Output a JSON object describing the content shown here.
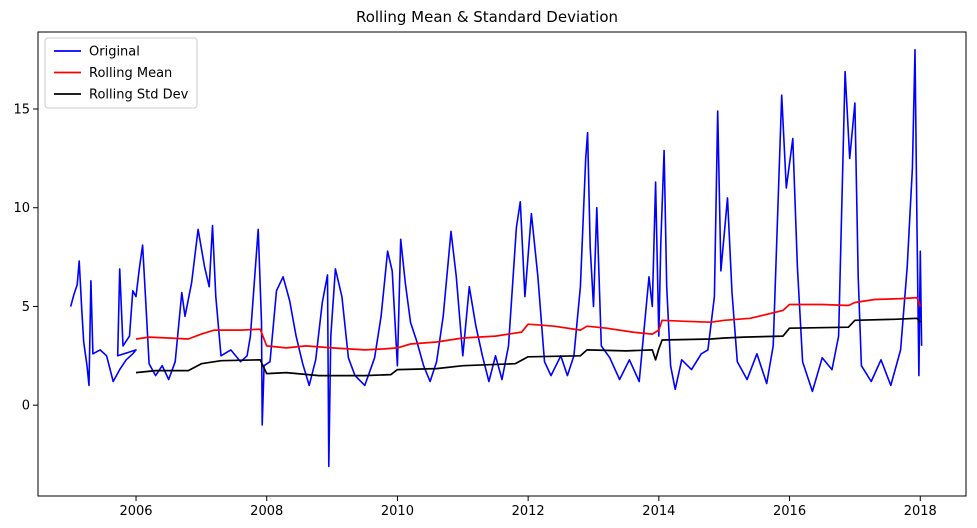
{
  "chart_data": {
    "type": "line",
    "title": "Rolling Mean & Standard Deviation",
    "xlabel": "",
    "ylabel": "",
    "xlim": [
      2004.5,
      2018.7
    ],
    "ylim": [
      -4.6,
      18.9
    ],
    "x_ticks": [
      2006,
      2008,
      2010,
      2012,
      2014,
      2016,
      2018
    ],
    "y_ticks": [
      0,
      5,
      10,
      15
    ],
    "grid": false,
    "legend_position": "top-left",
    "series": [
      {
        "name": "Original",
        "color": "#0000ff",
        "points": [
          [
            2005.0,
            5.0
          ],
          [
            2005.05,
            5.6
          ],
          [
            2005.1,
            6.1
          ],
          [
            2005.13,
            7.3
          ],
          [
            2005.17,
            4.8
          ],
          [
            2005.2,
            3.2
          ],
          [
            2005.25,
            2.0
          ],
          [
            2005.28,
            1.0
          ],
          [
            2005.31,
            6.3
          ],
          [
            2005.34,
            2.6
          ],
          [
            2005.45,
            2.8
          ],
          [
            2005.55,
            2.5
          ],
          [
            2005.65,
            1.2
          ],
          [
            2005.75,
            1.8
          ],
          [
            2005.85,
            2.3
          ],
          [
            2005.95,
            2.6
          ],
          [
            2006.0,
            2.8
          ],
          [
            2005.72,
            2.5
          ],
          [
            2005.75,
            6.9
          ],
          [
            2005.8,
            3.0
          ],
          [
            2005.9,
            3.5
          ],
          [
            2005.95,
            5.8
          ],
          [
            2006.0,
            5.5
          ],
          [
            2006.05,
            6.9
          ],
          [
            2006.1,
            8.1
          ],
          [
            2006.15,
            5.2
          ],
          [
            2006.2,
            2.1
          ],
          [
            2006.3,
            1.5
          ],
          [
            2006.4,
            2.0
          ],
          [
            2006.5,
            1.3
          ],
          [
            2006.6,
            2.2
          ],
          [
            2006.7,
            5.7
          ],
          [
            2006.75,
            4.5
          ],
          [
            2006.85,
            6.2
          ],
          [
            2006.95,
            8.9
          ],
          [
            2007.05,
            7.0
          ],
          [
            2007.12,
            6.0
          ],
          [
            2007.17,
            9.1
          ],
          [
            2007.22,
            5.5
          ],
          [
            2007.3,
            2.5
          ],
          [
            2007.45,
            2.8
          ],
          [
            2007.6,
            2.2
          ],
          [
            2007.7,
            2.5
          ],
          [
            2007.75,
            3.5
          ],
          [
            2007.8,
            5.8
          ],
          [
            2007.87,
            8.9
          ],
          [
            2007.92,
            4.2
          ],
          [
            2007.93,
            -1.0
          ],
          [
            2007.96,
            2.0
          ],
          [
            2008.05,
            2.2
          ],
          [
            2008.15,
            5.8
          ],
          [
            2008.25,
            6.5
          ],
          [
            2008.35,
            5.3
          ],
          [
            2008.45,
            3.5
          ],
          [
            2008.55,
            2.1
          ],
          [
            2008.65,
            1.0
          ],
          [
            2008.75,
            2.3
          ],
          [
            2008.85,
            5.2
          ],
          [
            2008.93,
            6.6
          ],
          [
            2008.95,
            -3.1
          ],
          [
            2008.98,
            3.5
          ],
          [
            2009.05,
            6.9
          ],
          [
            2009.15,
            5.5
          ],
          [
            2009.25,
            2.4
          ],
          [
            2009.35,
            1.5
          ],
          [
            2009.5,
            1.0
          ],
          [
            2009.65,
            2.4
          ],
          [
            2009.75,
            4.5
          ],
          [
            2009.85,
            7.8
          ],
          [
            2009.92,
            6.8
          ],
          [
            2010.0,
            2.0
          ],
          [
            2010.05,
            8.4
          ],
          [
            2010.12,
            6.2
          ],
          [
            2010.2,
            4.2
          ],
          [
            2010.3,
            3.2
          ],
          [
            2010.4,
            2.0
          ],
          [
            2010.5,
            1.2
          ],
          [
            2010.6,
            2.2
          ],
          [
            2010.7,
            4.5
          ],
          [
            2010.82,
            8.8
          ],
          [
            2010.9,
            6.5
          ],
          [
            2011.0,
            2.5
          ],
          [
            2011.1,
            6.0
          ],
          [
            2011.2,
            4.0
          ],
          [
            2011.3,
            2.5
          ],
          [
            2011.4,
            1.2
          ],
          [
            2011.5,
            2.5
          ],
          [
            2011.6,
            1.3
          ],
          [
            2011.7,
            3.0
          ],
          [
            2011.82,
            9.0
          ],
          [
            2011.88,
            10.3
          ],
          [
            2011.95,
            5.5
          ],
          [
            2012.05,
            9.7
          ],
          [
            2012.15,
            6.5
          ],
          [
            2012.25,
            2.2
          ],
          [
            2012.35,
            1.5
          ],
          [
            2012.5,
            2.5
          ],
          [
            2012.6,
            1.5
          ],
          [
            2012.7,
            2.5
          ],
          [
            2012.8,
            6.0
          ],
          [
            2012.88,
            12.5
          ],
          [
            2012.91,
            13.8
          ],
          [
            2012.95,
            8.0
          ],
          [
            2013.0,
            5.0
          ],
          [
            2013.05,
            10.0
          ],
          [
            2013.12,
            3.0
          ],
          [
            2013.25,
            2.4
          ],
          [
            2013.4,
            1.3
          ],
          [
            2013.55,
            2.3
          ],
          [
            2013.7,
            1.2
          ],
          [
            2013.85,
            6.5
          ],
          [
            2013.9,
            5.0
          ],
          [
            2013.95,
            11.3
          ],
          [
            2014.0,
            3.5
          ],
          [
            2014.03,
            8.2
          ],
          [
            2014.08,
            12.9
          ],
          [
            2014.12,
            6.0
          ],
          [
            2014.18,
            2.0
          ],
          [
            2014.25,
            0.8
          ],
          [
            2014.35,
            2.3
          ],
          [
            2014.5,
            1.8
          ],
          [
            2014.65,
            2.6
          ],
          [
            2014.75,
            2.8
          ],
          [
            2014.85,
            5.5
          ],
          [
            2014.9,
            14.9
          ],
          [
            2014.95,
            6.8
          ],
          [
            2015.05,
            10.5
          ],
          [
            2015.12,
            5.7
          ],
          [
            2015.2,
            2.2
          ],
          [
            2015.35,
            1.3
          ],
          [
            2015.5,
            2.6
          ],
          [
            2015.65,
            1.1
          ],
          [
            2015.75,
            3.0
          ],
          [
            2015.88,
            15.7
          ],
          [
            2015.95,
            11.0
          ],
          [
            2016.05,
            13.5
          ],
          [
            2016.12,
            7.0
          ],
          [
            2016.2,
            2.2
          ],
          [
            2016.35,
            0.7
          ],
          [
            2016.5,
            2.4
          ],
          [
            2016.65,
            1.8
          ],
          [
            2016.75,
            3.5
          ],
          [
            2016.85,
            16.9
          ],
          [
            2016.92,
            12.5
          ],
          [
            2017.0,
            15.3
          ],
          [
            2017.05,
            6.5
          ],
          [
            2017.1,
            2.0
          ],
          [
            2017.25,
            1.2
          ],
          [
            2017.4,
            2.3
          ],
          [
            2017.55,
            1.0
          ],
          [
            2017.7,
            2.8
          ],
          [
            2017.8,
            7.0
          ],
          [
            2017.88,
            12.0
          ],
          [
            2017.92,
            18.0
          ],
          [
            2017.95,
            9.0
          ],
          [
            2017.98,
            1.5
          ],
          [
            2018.0,
            7.8
          ],
          [
            2018.02,
            3.0
          ]
        ]
      },
      {
        "name": "Rolling Mean",
        "color": "#ff0000",
        "points": [
          [
            2006.0,
            3.35
          ],
          [
            2006.2,
            3.45
          ],
          [
            2006.5,
            3.4
          ],
          [
            2006.8,
            3.35
          ],
          [
            2007.0,
            3.6
          ],
          [
            2007.2,
            3.8
          ],
          [
            2007.6,
            3.8
          ],
          [
            2007.9,
            3.85
          ],
          [
            2008.0,
            3.0
          ],
          [
            2008.3,
            2.9
          ],
          [
            2008.6,
            3.0
          ],
          [
            2009.0,
            2.9
          ],
          [
            2009.5,
            2.8
          ],
          [
            2009.8,
            2.85
          ],
          [
            2010.0,
            2.9
          ],
          [
            2010.2,
            3.1
          ],
          [
            2010.6,
            3.2
          ],
          [
            2011.0,
            3.4
          ],
          [
            2011.5,
            3.5
          ],
          [
            2011.9,
            3.7
          ],
          [
            2012.0,
            4.1
          ],
          [
            2012.4,
            4.0
          ],
          [
            2012.8,
            3.8
          ],
          [
            2012.9,
            4.0
          ],
          [
            2013.2,
            3.9
          ],
          [
            2013.6,
            3.7
          ],
          [
            2013.9,
            3.6
          ],
          [
            2014.0,
            3.8
          ],
          [
            2014.05,
            4.3
          ],
          [
            2014.4,
            4.25
          ],
          [
            2014.8,
            4.2
          ],
          [
            2015.0,
            4.3
          ],
          [
            2015.4,
            4.4
          ],
          [
            2015.9,
            4.8
          ],
          [
            2016.0,
            5.1
          ],
          [
            2016.5,
            5.1
          ],
          [
            2016.9,
            5.05
          ],
          [
            2017.0,
            5.2
          ],
          [
            2017.3,
            5.35
          ],
          [
            2017.7,
            5.4
          ],
          [
            2017.95,
            5.45
          ],
          [
            2018.0,
            5.0
          ]
        ]
      },
      {
        "name": "Rolling Std Dev",
        "color": "#000000",
        "points": [
          [
            2006.0,
            1.65
          ],
          [
            2006.3,
            1.75
          ],
          [
            2006.8,
            1.75
          ],
          [
            2007.0,
            2.1
          ],
          [
            2007.3,
            2.25
          ],
          [
            2007.9,
            2.3
          ],
          [
            2008.0,
            1.6
          ],
          [
            2008.3,
            1.65
          ],
          [
            2008.8,
            1.5
          ],
          [
            2009.5,
            1.5
          ],
          [
            2009.9,
            1.55
          ],
          [
            2010.0,
            1.8
          ],
          [
            2010.6,
            1.85
          ],
          [
            2011.0,
            2.0
          ],
          [
            2011.8,
            2.1
          ],
          [
            2012.0,
            2.45
          ],
          [
            2012.8,
            2.5
          ],
          [
            2012.9,
            2.8
          ],
          [
            2013.5,
            2.75
          ],
          [
            2013.9,
            2.8
          ],
          [
            2013.95,
            2.3
          ],
          [
            2014.0,
            2.85
          ],
          [
            2014.05,
            3.3
          ],
          [
            2014.8,
            3.35
          ],
          [
            2015.0,
            3.4
          ],
          [
            2015.3,
            3.45
          ],
          [
            2015.9,
            3.5
          ],
          [
            2016.0,
            3.9
          ],
          [
            2016.9,
            3.95
          ],
          [
            2017.0,
            4.3
          ],
          [
            2017.6,
            4.35
          ],
          [
            2017.95,
            4.4
          ],
          [
            2018.0,
            4.2
          ]
        ]
      }
    ]
  }
}
